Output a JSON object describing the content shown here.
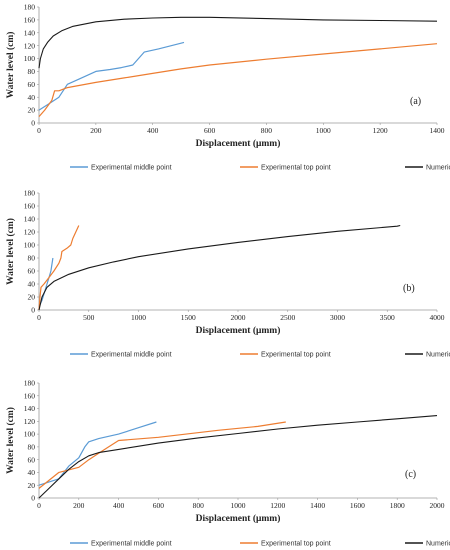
{
  "chart_data": [
    {
      "type": "line",
      "panel_label": "(a)",
      "xlabel": "Displacement (μmm)",
      "ylabel": "Water level (cm)",
      "xlim": [
        0,
        1400
      ],
      "ylim": [
        0,
        180
      ],
      "x_ticks": [
        0,
        200,
        400,
        600,
        800,
        1000,
        1200,
        1400
      ],
      "y_ticks": [
        0,
        20,
        40,
        60,
        80,
        100,
        120,
        140,
        160,
        180
      ],
      "grid": false,
      "legend_position": "bottom",
      "series": [
        {
          "name": "Experimental middle point",
          "color": "#5b9bd5",
          "points": [
            [
              0,
              20
            ],
            [
              35,
              30
            ],
            [
              70,
              40
            ],
            [
              100,
              60
            ],
            [
              140,
              68
            ],
            [
              200,
              80
            ],
            [
              250,
              83
            ],
            [
              290,
              86
            ],
            [
              330,
              90
            ],
            [
              370,
              110
            ],
            [
              420,
              115
            ],
            [
              510,
              125
            ]
          ]
        },
        {
          "name": "Experimental top point",
          "color": "#ed7d31",
          "points": [
            [
              0,
              10
            ],
            [
              20,
              20
            ],
            [
              45,
              35
            ],
            [
              55,
              50
            ],
            [
              70,
              50
            ],
            [
              100,
              55
            ],
            [
              200,
              63
            ],
            [
              300,
              70
            ],
            [
              400,
              77
            ],
            [
              500,
              84
            ],
            [
              600,
              90
            ],
            [
              800,
              99
            ],
            [
              1000,
              107
            ],
            [
              1200,
              115
            ],
            [
              1400,
              123
            ]
          ]
        },
        {
          "name": "Numerical top point",
          "color": "#1a1a1a",
          "points": [
            [
              0,
              85
            ],
            [
              5,
              100
            ],
            [
              15,
              115
            ],
            [
              30,
              125
            ],
            [
              50,
              135
            ],
            [
              80,
              143
            ],
            [
              120,
              150
            ],
            [
              200,
              157
            ],
            [
              300,
              161
            ],
            [
              400,
              163
            ],
            [
              500,
              164
            ],
            [
              600,
              164
            ],
            [
              800,
              162
            ],
            [
              1000,
              160
            ],
            [
              1200,
              159
            ],
            [
              1400,
              158
            ]
          ]
        }
      ]
    },
    {
      "type": "line",
      "panel_label": "(b)",
      "xlabel": "Displacement (μmm)",
      "ylabel": "Water level (cm)",
      "xlim": [
        0,
        4000
      ],
      "ylim": [
        0,
        180
      ],
      "x_ticks": [
        0,
        500,
        1000,
        1500,
        2000,
        2500,
        3000,
        3500,
        4000
      ],
      "y_ticks": [
        0,
        20,
        40,
        60,
        80,
        100,
        120,
        140,
        160,
        180
      ],
      "grid": false,
      "legend_position": "bottom",
      "series": [
        {
          "name": "Experimental middle point",
          "color": "#5b9bd5",
          "points": [
            [
              0,
              5
            ],
            [
              30,
              15
            ],
            [
              50,
              25
            ],
            [
              80,
              40
            ],
            [
              100,
              50
            ],
            [
              120,
              60
            ],
            [
              140,
              80
            ]
          ]
        },
        {
          "name": "Experimental top point",
          "color": "#ed7d31",
          "points": [
            [
              0,
              0
            ],
            [
              10,
              20
            ],
            [
              20,
              35
            ],
            [
              50,
              40
            ],
            [
              100,
              50
            ],
            [
              150,
              60
            ],
            [
              200,
              72
            ],
            [
              220,
              80
            ],
            [
              230,
              90
            ],
            [
              280,
              95
            ],
            [
              320,
              100
            ],
            [
              340,
              110
            ],
            [
              370,
              120
            ],
            [
              400,
              130
            ]
          ]
        },
        {
          "name": "Numerical top point",
          "color": "#1a1a1a",
          "points": [
            [
              0,
              0
            ],
            [
              30,
              20
            ],
            [
              80,
              35
            ],
            [
              150,
              44
            ],
            [
              300,
              55
            ],
            [
              500,
              65
            ],
            [
              750,
              74
            ],
            [
              1000,
              82
            ],
            [
              1500,
              94
            ],
            [
              2000,
              104
            ],
            [
              2500,
              113
            ],
            [
              3000,
              121
            ],
            [
              3600,
              129
            ],
            [
              3630,
              130
            ]
          ]
        }
      ]
    },
    {
      "type": "line",
      "panel_label": "(c)",
      "xlabel": "Displacement (μmm)",
      "ylabel": "Water level (cm)",
      "xlim": [
        0,
        2000
      ],
      "ylim": [
        0,
        180
      ],
      "x_ticks": [
        0,
        200,
        400,
        600,
        800,
        1000,
        1200,
        1400,
        1600,
        1800,
        2000
      ],
      "y_ticks": [
        0,
        20,
        40,
        60,
        80,
        100,
        120,
        140,
        160,
        180
      ],
      "grid": false,
      "legend_position": "bottom",
      "series": [
        {
          "name": "Experimental middle point",
          "color": "#5b9bd5",
          "points": [
            [
              0,
              20
            ],
            [
              100,
              30
            ],
            [
              150,
              50
            ],
            [
              200,
              63
            ],
            [
              230,
              80
            ],
            [
              250,
              88
            ],
            [
              300,
              93
            ],
            [
              400,
              100
            ],
            [
              500,
              110
            ],
            [
              590,
              119
            ]
          ]
        },
        {
          "name": "Experimental top point",
          "color": "#ed7d31",
          "points": [
            [
              0,
              15
            ],
            [
              100,
              40
            ],
            [
              200,
              48
            ],
            [
              250,
              60
            ],
            [
              300,
              70
            ],
            [
              350,
              80
            ],
            [
              400,
              90
            ],
            [
              600,
              95
            ],
            [
              900,
              106
            ],
            [
              1100,
              112
            ],
            [
              1240,
              119
            ]
          ]
        },
        {
          "name": "Numerical top point",
          "color": "#1a1a1a",
          "points": [
            [
              0,
              0
            ],
            [
              50,
              15
            ],
            [
              100,
              30
            ],
            [
              150,
              45
            ],
            [
              200,
              57
            ],
            [
              250,
              66
            ],
            [
              300,
              71
            ],
            [
              400,
              76
            ],
            [
              600,
              86
            ],
            [
              800,
              94
            ],
            [
              1000,
              101
            ],
            [
              1200,
              108
            ],
            [
              1400,
              114
            ],
            [
              1600,
              119
            ],
            [
              1800,
              124
            ],
            [
              2000,
              129
            ]
          ]
        }
      ]
    }
  ]
}
